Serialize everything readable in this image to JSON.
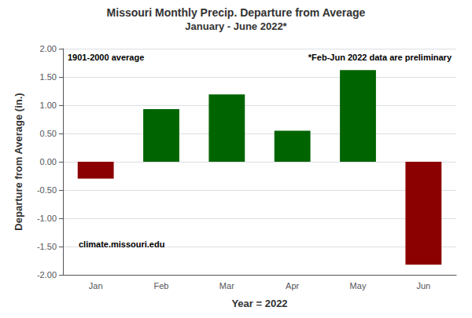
{
  "chart_data": {
    "type": "bar",
    "title": "Missouri Monthly Precip. Departure from Average",
    "subtitle": "January - June 2022*",
    "categories": [
      "Jan",
      "Feb",
      "Mar",
      "Apr",
      "May",
      "Jun"
    ],
    "values": [
      -0.3,
      0.93,
      1.19,
      0.55,
      1.62,
      -1.82
    ],
    "colors": [
      "#8B0000",
      "#006400",
      "#006400",
      "#006400",
      "#006400",
      "#8B0000"
    ],
    "xlabel": "Year = 2022",
    "ylabel": "Departure from Average (in.)",
    "ylim": [
      -2.0,
      2.0
    ],
    "yticks": [
      {
        "value": -2.0,
        "label": "-2.00"
      },
      {
        "value": -1.5,
        "label": "-1.50"
      },
      {
        "value": -1.0,
        "label": "-1.00"
      },
      {
        "value": -0.5,
        "label": "-0.50"
      },
      {
        "value": 0.0,
        "label": "0.00"
      },
      {
        "value": 0.5,
        "label": "0.50"
      },
      {
        "value": 1.0,
        "label": "1.00"
      },
      {
        "value": 1.5,
        "label": "1.50"
      },
      {
        "value": 2.0,
        "label": "2.00"
      }
    ],
    "grid": true,
    "annotations": [
      "1901-2000 average",
      "*Feb-Jun 2022 data are preliminary",
      "climate.missouri.edu"
    ]
  }
}
